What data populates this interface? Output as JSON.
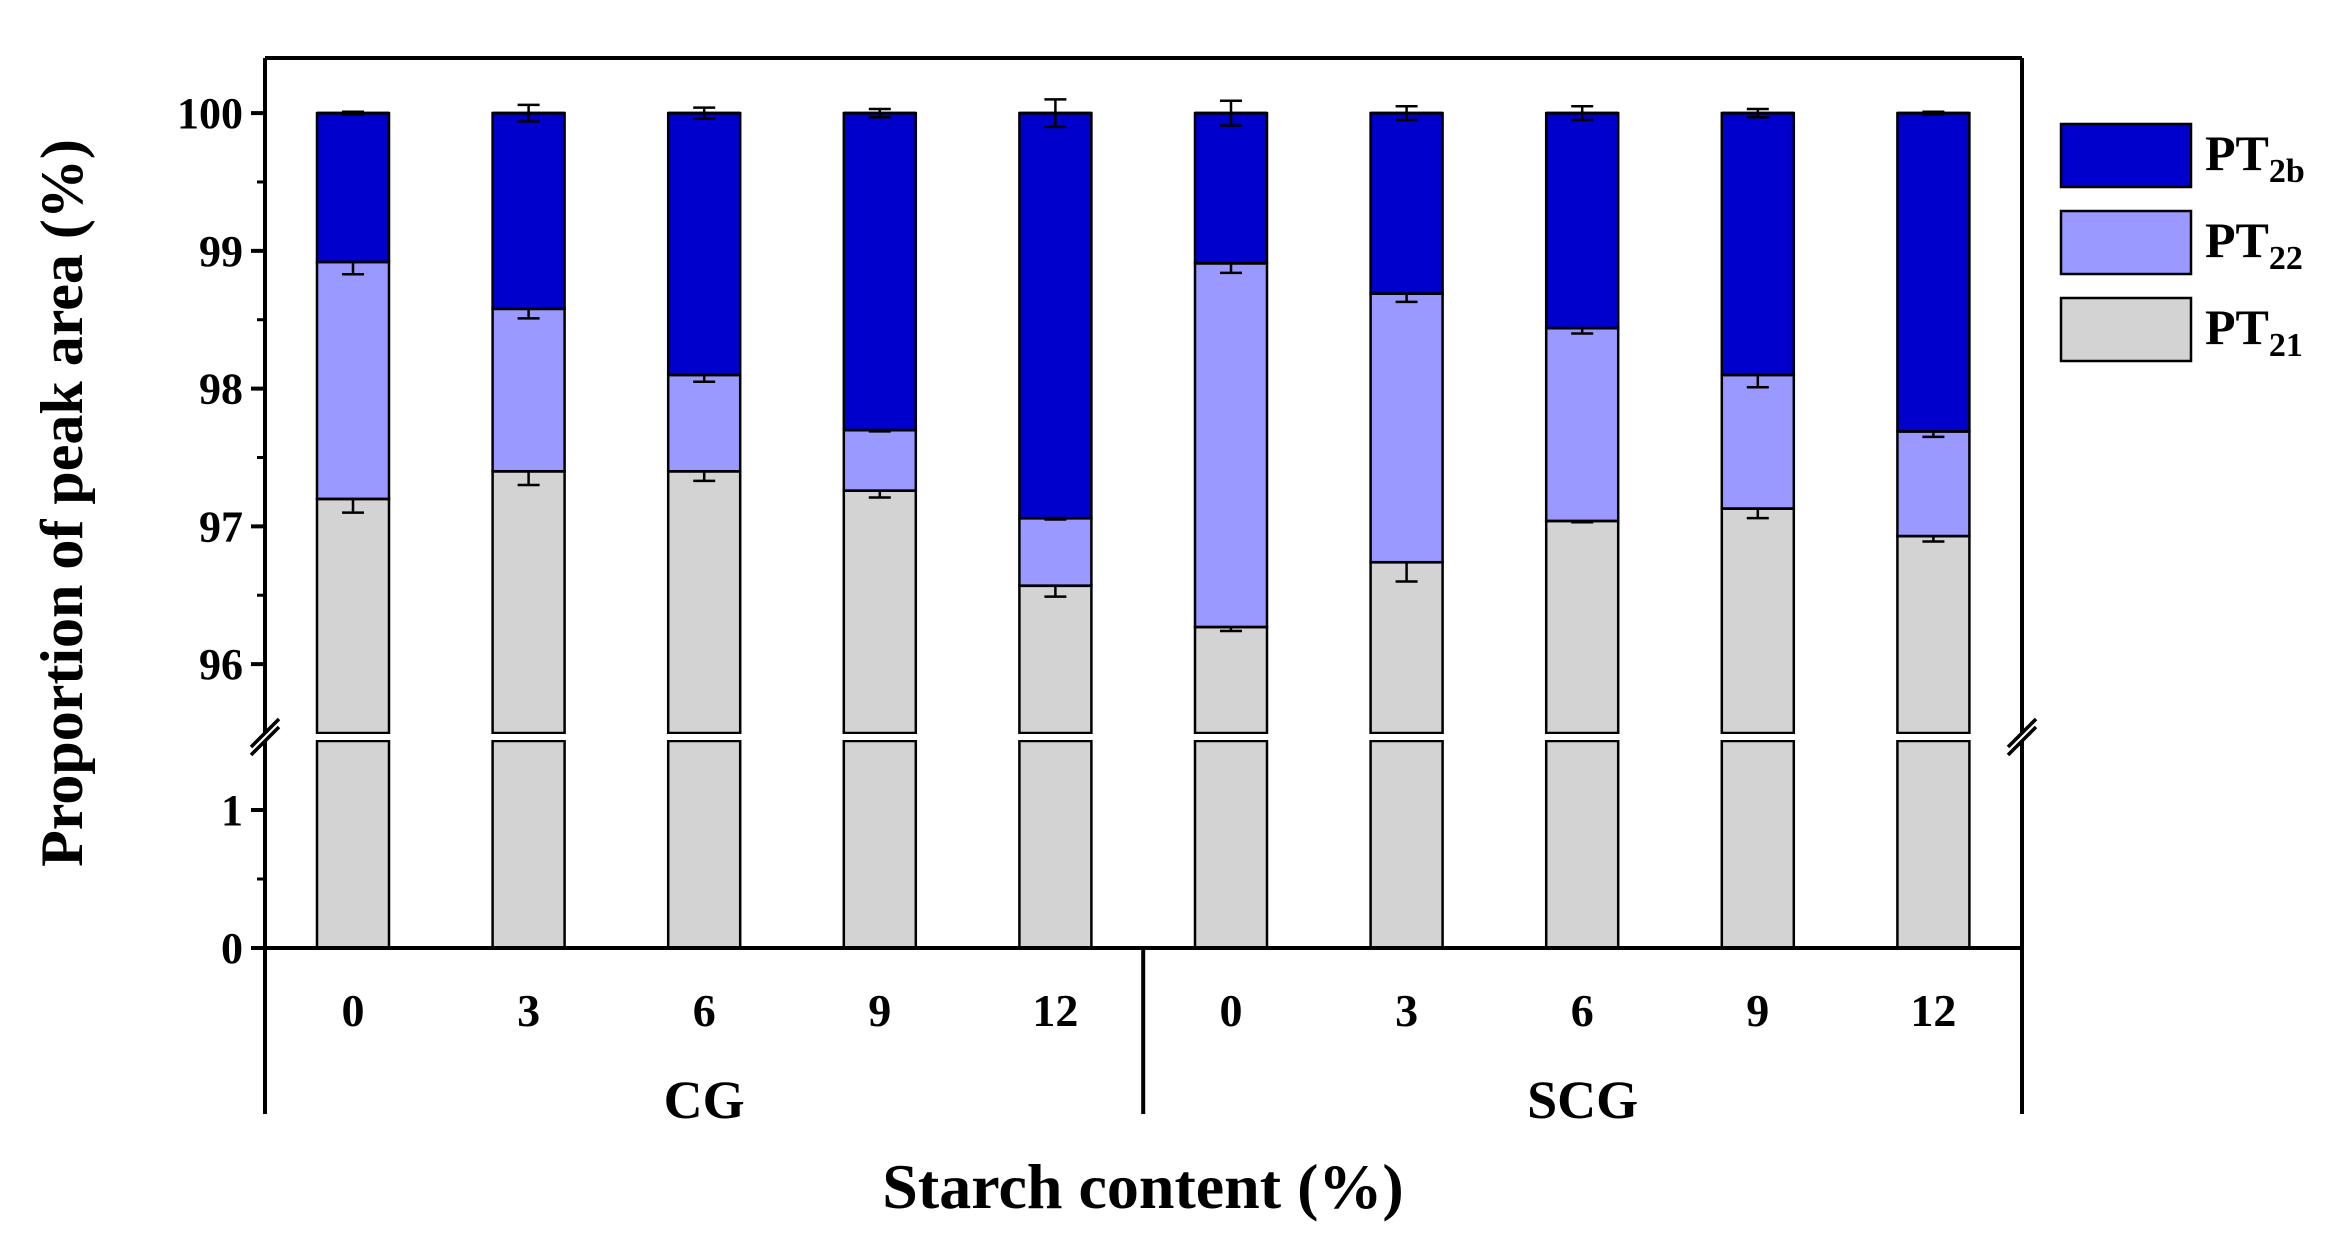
{
  "chart_data": {
    "type": "bar",
    "stacked": true,
    "broken_axis": true,
    "xlabel": "Starch content (%)",
    "ylabel": "Proportion of peak area (%)",
    "y_ticks_upper": [
      "96",
      "97",
      "98",
      "99",
      "100"
    ],
    "y_ticks_lower": [
      "0",
      "1"
    ],
    "ylim_upper": [
      95.5,
      100.4
    ],
    "ylim_lower": [
      0,
      1.5
    ],
    "groups": [
      {
        "label": "CG",
        "categories": [
          "0",
          "3",
          "6",
          "9",
          "12"
        ]
      },
      {
        "label": "SCG",
        "categories": [
          "0",
          "3",
          "6",
          "9",
          "12"
        ]
      }
    ],
    "series": [
      {
        "key": "pt21",
        "name": "PT",
        "subscript": "21",
        "color": "#d3d3d3",
        "values": [
          97.2,
          97.4,
          97.4,
          97.26,
          96.57,
          96.27,
          96.74,
          97.04,
          97.13,
          96.93
        ],
        "errors": [
          0.1,
          0.1,
          0.07,
          0.05,
          0.08,
          0.03,
          0.14,
          0.01,
          0.07,
          0.04
        ]
      },
      {
        "key": "pt22",
        "name": "PT",
        "subscript": "22",
        "color": "#9999ff",
        "values": [
          1.72,
          1.18,
          0.7,
          0.44,
          0.49,
          2.64,
          1.95,
          1.4,
          0.97,
          0.76
        ],
        "errors": [
          0.09,
          0.07,
          0.05,
          0.01,
          0.01,
          0.07,
          0.06,
          0.04,
          0.09,
          0.04
        ]
      },
      {
        "key": "pt2b",
        "name": "PT",
        "subscript": "2b",
        "color": "#0000cc",
        "values": [
          1.08,
          1.42,
          1.9,
          2.3,
          2.94,
          1.09,
          1.31,
          1.56,
          1.9,
          2.31
        ],
        "errors": [
          0.01,
          0.06,
          0.04,
          0.03,
          0.1,
          0.09,
          0.05,
          0.05,
          0.03,
          0.01
        ]
      }
    ],
    "legend": {
      "position": "right",
      "order": [
        "pt2b",
        "pt22",
        "pt21"
      ]
    }
  }
}
